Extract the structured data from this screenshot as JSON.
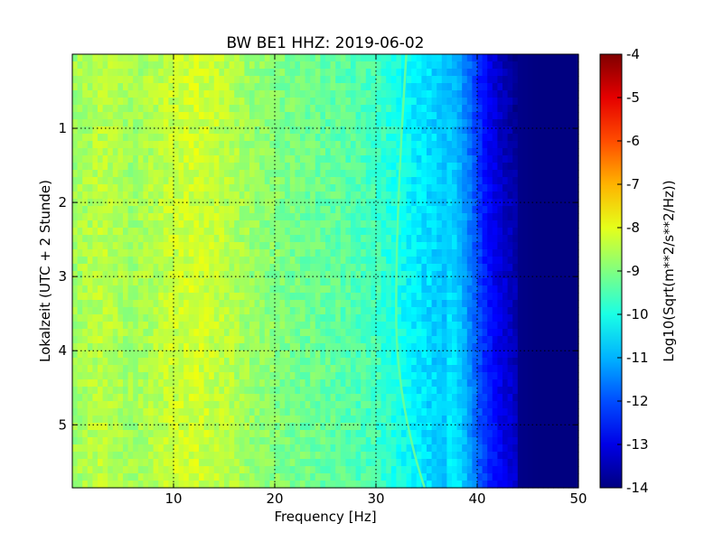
{
  "chart_data": {
    "type": "heatmap",
    "title": "BW BE1 HHZ: 2019-06-02",
    "xlabel": "Frequency [Hz]",
    "ylabel": "Lokalzeit (UTC + 2 Stunde)",
    "xlim": [
      0,
      50
    ],
    "ylim": [
      5.85,
      0
    ],
    "x_ticks": [
      "10",
      "20",
      "30",
      "40",
      "50"
    ],
    "y_ticks": [
      "1",
      "2",
      "3",
      "4",
      "5"
    ],
    "grid": true,
    "colorbar": {
      "label": "Log10(Sqrt(m**2/s**2/Hz))",
      "range": [
        -14,
        -4
      ],
      "ticks": [
        "-4",
        "-5",
        "-6",
        "-7",
        "-8",
        "-9",
        "-10",
        "-11",
        "-12",
        "-13",
        "-14"
      ],
      "colormap": "jet"
    },
    "frequency_profile": {
      "frequency_hz": [
        0,
        3,
        6,
        10,
        12,
        15,
        18,
        22,
        26,
        30,
        32,
        34,
        36,
        38,
        39,
        40,
        41,
        42,
        43,
        44,
        46,
        50
      ],
      "level": [
        -8.7,
        -8.4,
        -8.7,
        -8.3,
        -8.2,
        -8.4,
        -8.8,
        -9.1,
        -9.3,
        -9.6,
        -10.0,
        -10.4,
        -10.7,
        -11.0,
        -11.6,
        -12.3,
        -12.9,
        -13.3,
        -13.6,
        -13.9,
        -14.0,
        -14.0
      ]
    },
    "features": [
      {
        "name": "drifting line",
        "start": {
          "frequency_hz": 33.0,
          "time_h": 0
        },
        "mid": {
          "frequency_hz": 32.0,
          "time_h": 3.5
        },
        "end": {
          "frequency_hz": 34.8,
          "time_h": 5.85
        },
        "level": -9.3
      }
    ]
  }
}
